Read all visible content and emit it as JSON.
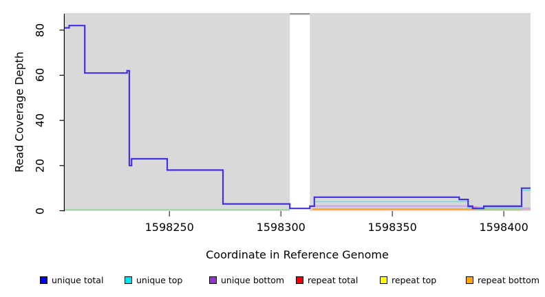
{
  "figure": {
    "background_color": "#ffffff",
    "panel_color": "#d9d9d9"
  },
  "chart_data": {
    "type": "line",
    "subtype": "step-coverage-plot",
    "title": "",
    "xlabel": "Coordinate in Reference Genome",
    "ylabel": "Read Coverage Depth",
    "xlim": [
      1598203,
      1598412
    ],
    "ylim": [
      0,
      87.5
    ],
    "x_ticks": [
      1598250,
      1598300,
      1598350,
      1598400
    ],
    "y_ticks": [
      0,
      20,
      40,
      60,
      80
    ],
    "grid": false,
    "legend_position": "bottom",
    "panel_color": "#d9d9d9",
    "gap_region": {
      "x_start": 1598304,
      "x_end": 1598313,
      "fill": "#ffffff",
      "cap_color": "#9b9b9b"
    },
    "series": [
      {
        "name": "unique total",
        "legend_color": "#0000f0",
        "line_color": "#4430e4",
        "line_width": 2.2,
        "draw_order": 6,
        "segments": [
          {
            "x_end": 1598412,
            "levels": [
              [
                1598203,
                81
              ],
              [
                1598205,
                82
              ],
              [
                1598212,
                61
              ],
              [
                1598231,
                62
              ],
              [
                1598232,
                20
              ],
              [
                1598233,
                23
              ],
              [
                1598249,
                18
              ],
              [
                1598274,
                3
              ],
              [
                1598304,
                1
              ],
              [
                1598313,
                2
              ],
              [
                1598315,
                6
              ],
              [
                1598380,
                5
              ],
              [
                1598384,
                2
              ],
              [
                1598386,
                1
              ],
              [
                1598391,
                2
              ],
              [
                1598408,
                10
              ]
            ]
          }
        ]
      },
      {
        "name": "unique top",
        "legend_color": "#00e4ee",
        "line_color": "#70dde8",
        "line_width": 1.7,
        "draw_order": 5,
        "segments": [
          {
            "x_end": 1598412,
            "levels": [
              [
                1598315,
                4
              ],
              [
                1598384,
                1
              ],
              [
                1598408,
                9
              ]
            ]
          }
        ]
      },
      {
        "name": "unique bottom",
        "legend_color": "#9c2fd0",
        "line_color": "#c8b0e4",
        "line_width": 3,
        "draw_order": 3,
        "segments": [
          {
            "x_end": 1598412,
            "levels": [
              [
                1598315,
                2
              ],
              [
                1598384,
                1.5
              ],
              [
                1598408,
                1
              ]
            ]
          }
        ]
      },
      {
        "name": "repeat total",
        "legend_color": "#f40000",
        "line_color": "#e878b4",
        "line_width": 1.7,
        "draw_order": 4,
        "segments": [
          {
            "x_end": 1598388,
            "levels": [
              [
                1598384,
                1.6
              ]
            ]
          }
        ]
      },
      {
        "name": "repeat top",
        "legend_color": "#ffff00",
        "line_color": "#ffff00",
        "line_width": 1.6,
        "draw_order": 0,
        "segments": []
      },
      {
        "name": "repeat bottom",
        "legend_color": "#ffa500",
        "line_color": "#ff9622",
        "line_width": 1.8,
        "draw_order": 1,
        "segments": [
          {
            "x_end": 1598412,
            "levels": [
              [
                1598314,
                0.7
              ]
            ]
          }
        ]
      }
    ],
    "extra_lines": [
      {
        "name": "baseline-overlap-green",
        "line_color": "#90d890",
        "line_width": 1.6,
        "draw_order": 2,
        "segments": [
          {
            "x_end": 1598304,
            "levels": [
              [
                1598203,
                0.45
              ]
            ]
          },
          {
            "x_end": 1598408,
            "levels": [
              [
                1598387,
                0.45
              ]
            ]
          }
        ]
      }
    ]
  },
  "legend": {
    "items": [
      {
        "label": "unique total",
        "swatch_color": "#0000f0"
      },
      {
        "label": "unique top",
        "swatch_color": "#00e4ee"
      },
      {
        "label": "unique bottom",
        "swatch_color": "#9c2fd0"
      },
      {
        "label": "repeat total",
        "swatch_color": "#f40000"
      },
      {
        "label": "repeat top",
        "swatch_color": "#ffff00"
      },
      {
        "label": "repeat bottom",
        "swatch_color": "#ffa500"
      }
    ]
  }
}
